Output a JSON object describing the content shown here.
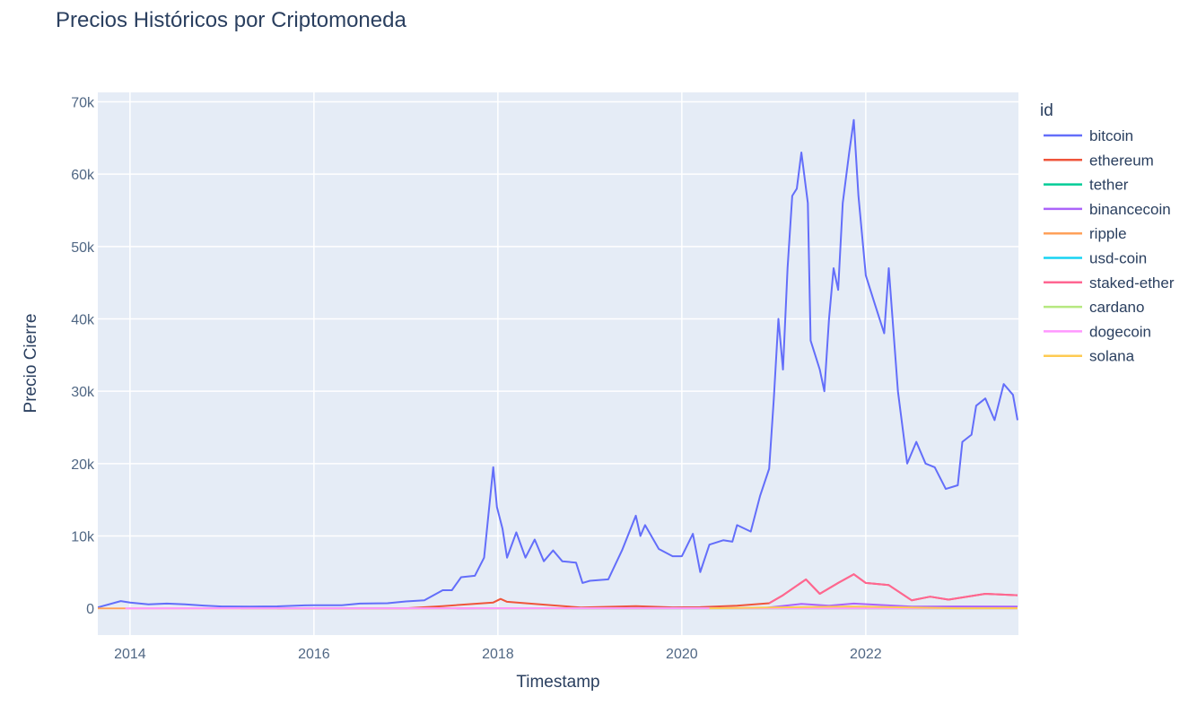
{
  "chart_data": {
    "type": "line",
    "title": "Precios Históricos por Criptomoneda",
    "x_label": "Timestamp",
    "y_label": "Precio Cierre",
    "legend_title": "id",
    "xlim": [
      2013.65,
      2023.66
    ],
    "xticks": [
      2014,
      2016,
      2018,
      2020,
      2022
    ],
    "ylim": [
      -3700,
      71300
    ],
    "yticks": [
      0,
      {
        "value": 10000,
        "label": "10k"
      },
      {
        "value": 20000,
        "label": "20k"
      },
      {
        "value": 30000,
        "label": "30k"
      },
      {
        "value": 40000,
        "label": "40k"
      },
      {
        "value": 50000,
        "label": "50k"
      },
      {
        "value": 60000,
        "label": "60k"
      },
      {
        "value": 70000,
        "label": "70k"
      }
    ],
    "grid": true,
    "series": [
      {
        "name": "bitcoin",
        "color": "#636efa",
        "x": [
          2013.65,
          2013.9,
          2014.0,
          2014.2,
          2014.4,
          2014.6,
          2014.8,
          2015.0,
          2015.3,
          2015.6,
          2015.9,
          2016.0,
          2016.3,
          2016.5,
          2016.8,
          2017.0,
          2017.2,
          2017.4,
          2017.5,
          2017.6,
          2017.75,
          2017.85,
          2017.95,
          2017.99,
          2018.05,
          2018.1,
          2018.2,
          2018.3,
          2018.4,
          2018.5,
          2018.6,
          2018.7,
          2018.85,
          2018.92,
          2019.0,
          2019.2,
          2019.35,
          2019.5,
          2019.55,
          2019.6,
          2019.75,
          2019.9,
          2020.0,
          2020.12,
          2020.2,
          2020.3,
          2020.45,
          2020.55,
          2020.6,
          2020.75,
          2020.85,
          2020.95,
          2021.0,
          2021.05,
          2021.1,
          2021.15,
          2021.2,
          2021.25,
          2021.3,
          2021.37,
          2021.4,
          2021.45,
          2021.5,
          2021.55,
          2021.6,
          2021.65,
          2021.7,
          2021.75,
          2021.82,
          2021.87,
          2021.92,
          2022.0,
          2022.1,
          2022.2,
          2022.25,
          2022.35,
          2022.45,
          2022.55,
          2022.65,
          2022.75,
          2022.87,
          2023.0,
          2023.05,
          2023.15,
          2023.2,
          2023.3,
          2023.4,
          2023.5,
          2023.6,
          2023.65
        ],
        "values": [
          130,
          1000,
          800,
          550,
          650,
          550,
          380,
          250,
          240,
          270,
          400,
          430,
          420,
          650,
          700,
          950,
          1100,
          2500,
          2500,
          4300,
          4500,
          7000,
          19500,
          14000,
          11000,
          7000,
          10500,
          7000,
          9500,
          6500,
          8000,
          6500,
          6300,
          3500,
          3800,
          4000,
          8000,
          12800,
          10000,
          11500,
          8200,
          7200,
          7200,
          10300,
          5000,
          8800,
          9400,
          9200,
          11500,
          10600,
          15500,
          19300,
          29000,
          40000,
          33000,
          47000,
          57000,
          58000,
          63000,
          56000,
          37000,
          35000,
          33000,
          30000,
          40000,
          47000,
          44000,
          56000,
          63000,
          67500,
          57000,
          46000,
          42000,
          38000,
          47000,
          30000,
          20000,
          23000,
          20000,
          19500,
          16500,
          17000,
          23000,
          24000,
          28000,
          29000,
          26000,
          31000,
          29500,
          26000
        ]
      },
      {
        "name": "ethereum",
        "color": "#EF553B",
        "x": [
          2015.6,
          2017.0,
          2017.4,
          2017.95,
          2018.03,
          2018.1,
          2018.3,
          2018.9,
          2019.5,
          2019.9,
          2020.2,
          2020.6,
          2020.95,
          2021.1,
          2021.35,
          2021.5,
          2021.7,
          2021.87,
          2022.0,
          2022.25,
          2022.5,
          2022.7,
          2022.9,
          2023.3,
          2023.65
        ],
        "values": [
          1,
          10,
          300,
          800,
          1300,
          900,
          700,
          100,
          300,
          130,
          150,
          350,
          700,
          1800,
          4000,
          2000,
          3500,
          4700,
          3500,
          3200,
          1100,
          1600,
          1200,
          2000,
          1800
        ]
      },
      {
        "name": "tether",
        "color": "#00cc96",
        "x": [
          2015.2,
          2019.0,
          2023.65
        ],
        "values": [
          1,
          1,
          1
        ]
      },
      {
        "name": "binancecoin",
        "color": "#ab63fa",
        "x": [
          2017.55,
          2018.0,
          2019.5,
          2020.9,
          2021.3,
          2021.6,
          2021.87,
          2022.5,
          2023.0,
          2023.65
        ],
        "values": [
          0.1,
          20,
          30,
          40,
          600,
          350,
          650,
          230,
          250,
          240
        ]
      },
      {
        "name": "ripple",
        "color": "#FFA15A",
        "x": [
          2013.65,
          2017.0,
          2018.0,
          2019.0,
          2021.3,
          2023.65
        ],
        "values": [
          0.005,
          0.006,
          2.5,
          0.35,
          1.5,
          0.5
        ]
      },
      {
        "name": "usd-coin",
        "color": "#19d3f3",
        "x": [
          2018.8,
          2023.65
        ],
        "values": [
          1,
          1
        ]
      },
      {
        "name": "staked-ether",
        "color": "#FF6692",
        "x": [
          2020.95,
          2021.1,
          2021.35,
          2021.5,
          2021.7,
          2021.87,
          2022.0,
          2022.25,
          2022.5,
          2022.7,
          2022.9,
          2023.3,
          2023.65
        ],
        "values": [
          700,
          1800,
          4000,
          2000,
          3500,
          4700,
          3500,
          3200,
          1100,
          1600,
          1200,
          2000,
          1800
        ]
      },
      {
        "name": "cardano",
        "color": "#B6E880",
        "x": [
          2017.75,
          2018.0,
          2021.7,
          2023.65
        ],
        "values": [
          0.02,
          1,
          2.9,
          0.3
        ]
      },
      {
        "name": "dogecoin",
        "color": "#FF97FF",
        "x": [
          2013.95,
          2021.35,
          2023.65
        ],
        "values": [
          0.0002,
          0.7,
          0.07
        ]
      },
      {
        "name": "solana",
        "color": "#FECB52",
        "x": [
          2020.3,
          2021.85,
          2023.0,
          2023.65
        ],
        "values": [
          1,
          250,
          10,
          25
        ]
      }
    ]
  }
}
